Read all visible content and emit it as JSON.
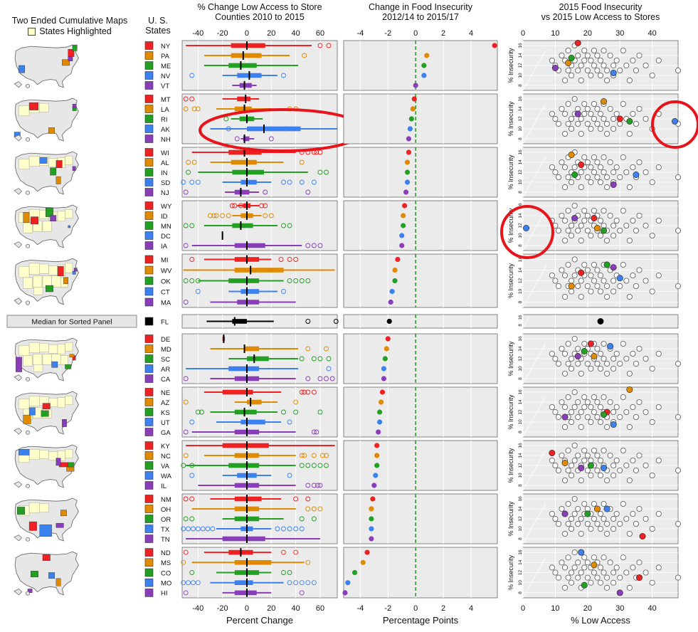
{
  "titles": {
    "maps": [
      "Two Ended Cumulative Maps",
      "States Highlighted"
    ],
    "states": [
      "U. S.",
      "States"
    ],
    "lowaccess": [
      "% Change Low Access to Store",
      "Counties 2010 to 2015"
    ],
    "insecurity": [
      "Change in Food Insecurity",
      "2012/14 to 2015/17"
    ],
    "scatter": [
      "2015 Food Insecurity",
      "vs 2015 Low Access to Stores"
    ]
  },
  "xlabels": {
    "lowaccess": "Percent Change",
    "insecurity": "Percentage Points",
    "scatter": "% Low Access"
  },
  "scatter_ylabel": "% Insecurity",
  "median_label": "Median for Sorted Panel",
  "colors": [
    "#ee2222",
    "#e08a00",
    "#22a022",
    "#3b82f0",
    "#8a3db8"
  ],
  "median_color": "#000000",
  "chart_data": [
    {
      "type": "box",
      "name": "lowaccess",
      "title": "% Change Low Access to Store Counties 2010 to 2015",
      "xlabel": "Percent Change",
      "xlim": [
        -53,
        74
      ],
      "xticks": [
        -40,
        -20,
        0,
        20,
        40,
        60
      ],
      "groups": [
        [
          "NY",
          "PA",
          "ME",
          "NV",
          "VT"
        ],
        [
          "MT",
          "LA",
          "RI",
          "AK",
          "NH"
        ],
        [
          "WI",
          "AL",
          "IN",
          "SD",
          "NJ"
        ],
        [
          "WY",
          "ID",
          "MN",
          "DC",
          "IA"
        ],
        [
          "MI",
          "WV",
          "OK",
          "CT",
          "MA"
        ],
        [
          "FL"
        ],
        [
          "DE",
          "MD",
          "SC",
          "AR",
          "CA"
        ],
        [
          "NE",
          "AZ",
          "KS",
          "UT",
          "GA"
        ],
        [
          "KY",
          "NC",
          "VA",
          "WA",
          "IL"
        ],
        [
          "NM",
          "OH",
          "OR",
          "TX",
          "TN"
        ],
        [
          "ND",
          "MS",
          "CO",
          "MO",
          "HI"
        ]
      ],
      "rows": [
        [
          [
            -50,
            -13,
            0,
            15,
            53
          ],
          [
            60,
            67
          ]
        ],
        [
          [
            -35,
            -13,
            -3,
            12,
            35
          ],
          [
            47
          ]
        ],
        [
          [
            -35,
            -15,
            -5,
            8,
            42
          ],
          []
        ],
        [
          [
            -20,
            -8,
            2,
            12,
            25
          ],
          [
            -45,
            30
          ]
        ],
        [
          [
            -12,
            -6,
            -2,
            4,
            8
          ],
          []
        ],
        [
          [
            -20,
            -8,
            -1,
            3,
            10
          ],
          [
            -50,
            -45
          ]
        ],
        [
          [
            -25,
            -10,
            -2,
            4,
            20
          ],
          [
            -50,
            -43,
            -40,
            35,
            40
          ]
        ],
        [
          [
            -13,
            -6,
            0,
            6,
            13
          ],
          [
            -17
          ]
        ],
        [
          [
            -30,
            0,
            14,
            44,
            74
          ],
          [
            -15,
            20,
            32
          ]
        ],
        [
          [
            -5,
            -3,
            -2,
            2,
            6
          ],
          [
            -8,
            20
          ]
        ],
        [
          [
            -45,
            -15,
            -2,
            12,
            40
          ],
          [
            45,
            50,
            55,
            57,
            60
          ]
        ],
        [
          [
            -30,
            -13,
            0,
            8,
            30
          ],
          [
            -48,
            -43,
            45
          ]
        ],
        [
          [
            -40,
            -12,
            0,
            14,
            50
          ],
          [
            -48,
            60,
            65
          ]
        ],
        [
          [
            -20,
            -5,
            0,
            8,
            20
          ],
          [
            -52,
            -45,
            -40,
            30,
            35,
            45,
            55
          ]
        ],
        [
          [
            -18,
            -10,
            -5,
            2,
            10
          ],
          [
            -50,
            15,
            50
          ]
        ],
        [
          [
            -8,
            -3,
            0,
            3,
            10
          ],
          [
            -12,
            -10,
            -5,
            12,
            15
          ]
        ],
        [
          [
            -12,
            -5,
            0,
            5,
            12
          ],
          [
            -30,
            -27,
            -25,
            -20,
            -15,
            15,
            20
          ]
        ],
        [
          [
            -35,
            -12,
            -5,
            5,
            25
          ],
          [
            -50,
            -45,
            30,
            35
          ]
        ],
        [
          [
            -20,
            -20,
            -20,
            -20,
            -20
          ],
          []
        ],
        [
          [
            -45,
            -10,
            0,
            15,
            45
          ],
          [
            -50,
            50,
            55,
            60
          ]
        ],
        [
          [
            -35,
            -10,
            0,
            10,
            20
          ],
          [
            -45,
            28,
            35,
            40
          ]
        ],
        [
          [
            -52,
            -10,
            3,
            30,
            72
          ],
          []
        ],
        [
          [
            -40,
            -15,
            0,
            10,
            30
          ],
          [
            -50,
            -45,
            -40,
            35,
            40,
            45,
            50
          ]
        ],
        [
          [
            -15,
            -5,
            0,
            10,
            25
          ],
          [
            -40,
            30
          ]
        ],
        [
          [
            -30,
            -8,
            0,
            10,
            40
          ],
          [
            -50
          ]
        ],
        [
          [
            -33,
            -12,
            -10,
            0,
            22
          ],
          [
            50,
            73
          ]
        ],
        [
          [
            -17,
            -20,
            -19,
            -18,
            -17
          ],
          []
        ],
        [
          [
            -30,
            -2,
            -2,
            10,
            42
          ],
          [
            50,
            65
          ]
        ],
        [
          [
            -15,
            0,
            6,
            18,
            42
          ],
          [
            45,
            55,
            60,
            67
          ]
        ],
        [
          [
            -50,
            -15,
            0,
            10,
            42
          ],
          [
            67
          ]
        ],
        [
          [
            -30,
            -10,
            0,
            10,
            40
          ],
          [
            -50,
            50,
            60,
            65,
            70
          ]
        ],
        [
          [
            -35,
            -20,
            0,
            5,
            28
          ],
          [
            45,
            47,
            50,
            55
          ]
        ],
        [
          [
            -10,
            0,
            3,
            12,
            25
          ],
          [
            -50,
            40
          ]
        ],
        [
          [
            -30,
            -10,
            -2,
            8,
            25
          ],
          [
            -40,
            -37,
            30,
            40,
            60
          ]
        ],
        [
          [
            -25,
            -5,
            0,
            15,
            28
          ],
          [
            -45,
            35
          ]
        ],
        [
          [
            -45,
            -10,
            0,
            10,
            40
          ],
          [
            -50,
            55,
            57
          ]
        ],
        [
          [
            -50,
            -20,
            0,
            18,
            72
          ],
          []
        ],
        [
          [
            -35,
            -10,
            0,
            10,
            40
          ],
          [
            -50,
            45,
            47,
            55,
            62,
            65
          ]
        ],
        [
          [
            -50,
            -15,
            0,
            10,
            40
          ],
          [
            -52,
            -45,
            45,
            50,
            55,
            60,
            65
          ]
        ],
        [
          [
            -20,
            -8,
            0,
            8,
            20
          ],
          [
            -45,
            35
          ]
        ],
        [
          [
            -40,
            -10,
            0,
            10,
            40
          ],
          [
            50,
            55,
            58,
            60
          ]
        ],
        [
          [
            -30,
            -10,
            0,
            12,
            28
          ],
          [
            -50,
            -45,
            40,
            50
          ]
        ],
        [
          [
            -45,
            -10,
            0,
            10,
            40
          ],
          [
            50,
            55,
            60
          ]
        ],
        [
          [
            -20,
            -10,
            0,
            10,
            30
          ],
          [
            -50,
            -45,
            45,
            55
          ]
        ],
        [
          [
            -25,
            -5,
            0,
            5,
            20
          ],
          [
            -52,
            -48,
            -44,
            -40,
            -36,
            -32,
            -28,
            25,
            30,
            35,
            40,
            45
          ]
        ],
        [
          [
            -50,
            -20,
            0,
            15,
            60
          ],
          []
        ],
        [
          [
            -35,
            -15,
            -5,
            5,
            20
          ],
          [
            -50,
            30,
            40
          ]
        ],
        [
          [
            -45,
            -10,
            0,
            20,
            47
          ],
          [
            -52,
            50
          ]
        ],
        [
          [
            -25,
            -10,
            0,
            10,
            20
          ],
          [
            -45,
            30,
            35
          ]
        ],
        [
          [
            -30,
            -10,
            0,
            5,
            30
          ],
          [
            -52,
            -48,
            -44,
            -40,
            35,
            40,
            45,
            50,
            55
          ]
        ],
        [
          [
            -20,
            -10,
            0,
            8,
            20
          ],
          [
            -50,
            45
          ]
        ]
      ]
    },
    {
      "type": "dot",
      "name": "insecurity",
      "title": "Change in Food Insecurity 2012/14 to 2015/17",
      "xlabel": "Percentage Points",
      "xlim": [
        -5.2,
        5.9
      ],
      "xticks": [
        -4,
        -2,
        0,
        2,
        4
      ],
      "reference_line": 0,
      "values": [
        5.7,
        0.8,
        0.6,
        0.6,
        0.0,
        -0.1,
        -0.2,
        -0.3,
        -0.4,
        -0.5,
        -0.5,
        -0.6,
        -0.6,
        -0.6,
        -0.7,
        -0.8,
        -0.9,
        -0.9,
        -1.0,
        -1.0,
        -1.3,
        -1.5,
        -1.5,
        -1.7,
        -1.8,
        -1.9,
        -2.0,
        -2.1,
        -2.2,
        -2.3,
        -2.3,
        -2.4,
        -2.5,
        -2.6,
        -2.6,
        -2.7,
        -2.8,
        -2.8,
        -2.8,
        -2.9,
        -3.0,
        -3.1,
        -3.2,
        -3.2,
        -3.2,
        -3.2,
        -3.5,
        -3.8,
        -4.4,
        -4.9,
        -5.1
      ]
    },
    {
      "type": "scatter",
      "name": "scatter",
      "title": "2015 Food Insecurity vs 2015 Low Access to Stores",
      "xlabel": "% Low Access",
      "ylabel": "% Insecurity",
      "xlim": [
        0,
        48
      ],
      "ylim": [
        7,
        17
      ],
      "xticks": [
        0,
        10,
        20,
        30,
        40
      ],
      "yticks": [
        8,
        10,
        12,
        14,
        16
      ],
      "background_points": [
        [
          9,
          13
        ],
        [
          10,
          12
        ],
        [
          11,
          11
        ],
        [
          12,
          14
        ],
        [
          13,
          13
        ],
        [
          13,
          9
        ],
        [
          14,
          15
        ],
        [
          14,
          11
        ],
        [
          15,
          12
        ],
        [
          15,
          10
        ],
        [
          16,
          13
        ],
        [
          16,
          16
        ],
        [
          17,
          11
        ],
        [
          17,
          14
        ],
        [
          18,
          12
        ],
        [
          18,
          9
        ],
        [
          19,
          15
        ],
        [
          19,
          13
        ],
        [
          20,
          11
        ],
        [
          20,
          14
        ],
        [
          21,
          10
        ],
        [
          21,
          13
        ],
        [
          22,
          12
        ],
        [
          22,
          15
        ],
        [
          23,
          11
        ],
        [
          23,
          14
        ],
        [
          24,
          10
        ],
        [
          24,
          13
        ],
        [
          25,
          12
        ],
        [
          25,
          15
        ],
        [
          26,
          11
        ],
        [
          26,
          9
        ],
        [
          27,
          14
        ],
        [
          28,
          12
        ],
        [
          28,
          10
        ],
        [
          29,
          13
        ],
        [
          30,
          11
        ],
        [
          31,
          15
        ],
        [
          32,
          12
        ],
        [
          33,
          9
        ],
        [
          34,
          13
        ],
        [
          35,
          11
        ],
        [
          36,
          14
        ],
        [
          38,
          12
        ],
        [
          40,
          10
        ],
        [
          42,
          13
        ],
        [
          48,
          11
        ]
      ],
      "highlighted_points": [
        [
          [
            17,
            16.5
          ],
          [
            14,
            12.5
          ],
          [
            15,
            13.5
          ],
          [
            28,
            10.5
          ],
          [
            10,
            11.5
          ]
        ],
        [
          [
            30,
            12.0
          ],
          [
            25,
            15.5
          ],
          [
            33,
            11.5
          ],
          [
            47,
            11.5
          ],
          [
            17,
            13.0
          ]
        ],
        [
          [
            18,
            13.5
          ],
          [
            15,
            15.5
          ],
          [
            16,
            11.5
          ],
          [
            35,
            11.5
          ],
          [
            28,
            9.5
          ]
        ],
        [
          [
            22,
            13.5
          ],
          [
            23,
            11.5
          ],
          [
            25,
            11.0
          ],
          [
            1,
            11.5
          ],
          [
            16,
            13.5
          ]
        ],
        [
          [
            18,
            13.5
          ],
          [
            15,
            11.0
          ],
          [
            26,
            15.0
          ],
          [
            30,
            12.5
          ],
          [
            28,
            14.5
          ]
        ],
        [
          [
            24,
            12.0
          ]
        ],
        [
          [
            21,
            15.0
          ],
          [
            22,
            12.5
          ],
          [
            19,
            13.5
          ],
          [
            27,
            14.5
          ],
          [
            17,
            12.5
          ]
        ],
        [
          [
            26,
            12.0
          ],
          [
            33,
            16.5
          ],
          [
            25,
            11.5
          ],
          [
            28,
            9.5
          ],
          [
            13,
            11.0
          ]
        ],
        [
          [
            9,
            14.5
          ],
          [
            13,
            12.5
          ],
          [
            21,
            12.0
          ],
          [
            25,
            11.5
          ],
          [
            18,
            11.5
          ]
        ],
        [
          [
            37,
            8.5
          ],
          [
            23,
            14.0
          ],
          [
            20,
            13.0
          ],
          [
            26,
            14.0
          ],
          [
            13,
            13.0
          ]
        ],
        [
          [
            36,
            11.0
          ],
          [
            22,
            13.5
          ],
          [
            19,
            9.5
          ],
          [
            18,
            16.0
          ],
          [
            30,
            8.0
          ]
        ]
      ],
      "median_points": [
        [
          24,
          12.0
        ]
      ]
    }
  ]
}
